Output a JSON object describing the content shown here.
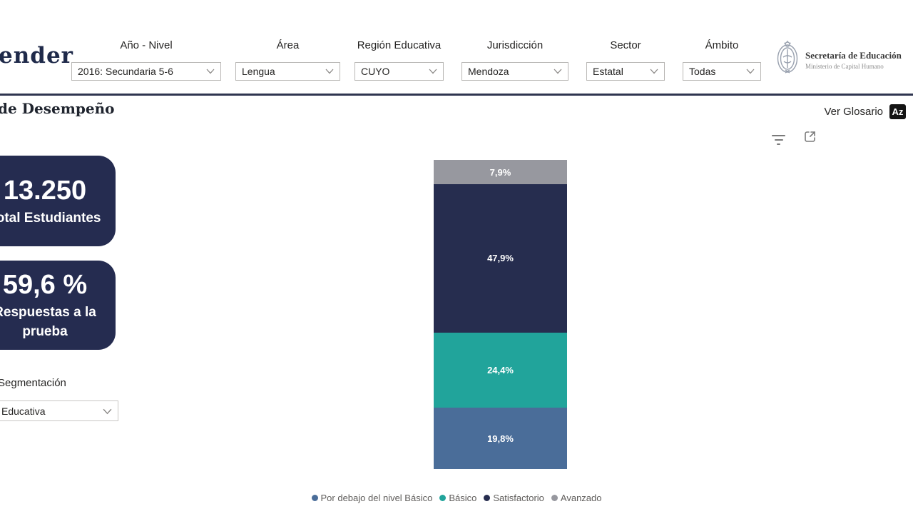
{
  "page": {
    "background": "#ffffff",
    "accent_navy": "#252c50",
    "divider_color": "#2f3550"
  },
  "header": {
    "logo_text": "ender",
    "filters": [
      {
        "label": "Año - Nivel",
        "value": "2016: Secundaria 5-6"
      },
      {
        "label": "Área",
        "value": "Lengua"
      },
      {
        "label": "Región Educativa",
        "value": "CUYO"
      },
      {
        "label": "Jurisdicción",
        "value": "Mendoza"
      },
      {
        "label": "Sector",
        "value": "Estatal"
      },
      {
        "label": "Ámbito",
        "value": "Todas"
      }
    ],
    "org_logo": {
      "line1": "Secretaría de Educación",
      "line2": "Ministerio de Capital Humano"
    }
  },
  "toolbar": {
    "title": "de Desempeño",
    "glossary_label": "Ver Glosario",
    "glossary_badge": "Az"
  },
  "cards": [
    {
      "value": "13.250",
      "label": "Total Estudiantes"
    },
    {
      "value": "59,6 %",
      "label": "Respuestas a la prueba"
    }
  ],
  "segmentation": {
    "label": "Segmentación",
    "value": "Educativa"
  },
  "chart_data": {
    "type": "bar",
    "subtype": "stacked-column-100",
    "title": "de Desempeño",
    "ylim": [
      0,
      100
    ],
    "value_format": "percent, comma decimal",
    "legend_position": "bottom",
    "stack_order_bottom_to_top": [
      "Por debajo del nivel Básico",
      "Básico",
      "Satisfactorio",
      "Avanzado"
    ],
    "series": [
      {
        "name": "Por debajo del nivel Básico",
        "values": [
          19.8
        ],
        "label": "19,8%",
        "color": "#4a6d99"
      },
      {
        "name": "Básico",
        "values": [
          24.4
        ],
        "label": "24,4%",
        "color": "#21a49b"
      },
      {
        "name": "Satisfactorio",
        "values": [
          47.9
        ],
        "label": "47,9%",
        "color": "#262d4f"
      },
      {
        "name": "Avanzado",
        "values": [
          7.9
        ],
        "label": "7,9%",
        "color": "#97989f"
      }
    ]
  }
}
